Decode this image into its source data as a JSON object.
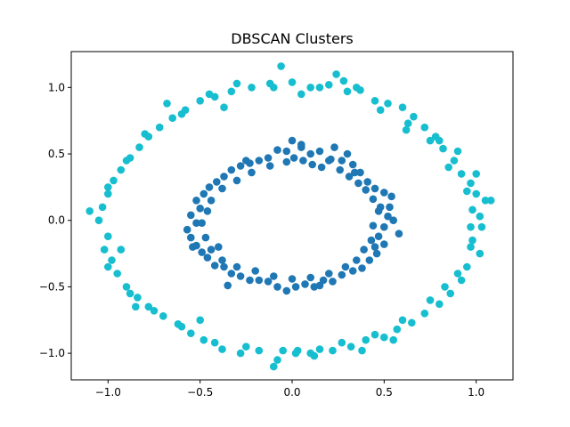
{
  "chart_data": {
    "type": "scatter",
    "title": "DBSCAN Clusters",
    "xlabel": "",
    "ylabel": "",
    "xlim": [
      -1.2,
      1.2
    ],
    "ylim": [
      -1.2,
      1.27
    ],
    "xticks": [
      -1.0,
      -0.5,
      0.0,
      0.5,
      1.0
    ],
    "xtick_labels": [
      "−1.0",
      "−0.5",
      "0.0",
      "0.5",
      "1.0"
    ],
    "yticks": [
      -1.0,
      -0.5,
      0.0,
      0.5,
      1.0
    ],
    "ytick_labels": [
      "−1.0",
      "−0.5",
      "0.0",
      "0.5",
      "1.0"
    ],
    "grid": false,
    "legend": "none",
    "series": [
      {
        "color": "#1f77b4",
        "points": [
          [
            0.0,
            0.6
          ],
          [
            0.05,
            0.57
          ],
          [
            0.1,
            0.5
          ],
          [
            0.15,
            0.52
          ],
          [
            0.2,
            0.45
          ],
          [
            0.23,
            0.55
          ],
          [
            0.27,
            0.45
          ],
          [
            0.3,
            0.5
          ],
          [
            0.33,
            0.42
          ],
          [
            0.37,
            0.36
          ],
          [
            0.41,
            0.29
          ],
          [
            0.45,
            0.24
          ],
          [
            0.5,
            0.21
          ],
          [
            0.54,
            0.18
          ],
          [
            0.48,
            0.1
          ],
          [
            0.52,
            0.03
          ],
          [
            0.55,
            0.0
          ],
          [
            0.5,
            -0.05
          ],
          [
            0.47,
            -0.12
          ],
          [
            0.5,
            -0.18
          ],
          [
            0.46,
            -0.25
          ],
          [
            0.42,
            -0.3
          ],
          [
            0.38,
            -0.36
          ],
          [
            0.33,
            -0.38
          ],
          [
            0.27,
            -0.41
          ],
          [
            0.22,
            -0.46
          ],
          [
            0.17,
            -0.45
          ],
          [
            0.12,
            -0.5
          ],
          [
            0.07,
            -0.48
          ],
          [
            0.02,
            -0.5
          ],
          [
            -0.03,
            -0.53
          ],
          [
            -0.08,
            -0.5
          ],
          [
            -0.13,
            -0.46
          ],
          [
            -0.18,
            -0.45
          ],
          [
            -0.23,
            -0.45
          ],
          [
            -0.28,
            -0.42
          ],
          [
            -0.33,
            -0.4
          ],
          [
            -0.37,
            -0.35
          ],
          [
            -0.42,
            -0.34
          ],
          [
            -0.46,
            -0.28
          ],
          [
            -0.49,
            -0.24
          ],
          [
            -0.52,
            -0.19
          ],
          [
            -0.55,
            -0.13
          ],
          [
            -0.57,
            -0.07
          ],
          [
            -0.52,
            -0.02
          ],
          [
            -0.55,
            0.04
          ],
          [
            -0.5,
            0.09
          ],
          [
            -0.52,
            0.15
          ],
          [
            -0.48,
            0.2
          ],
          [
            -0.45,
            0.25
          ],
          [
            -0.41,
            0.29
          ],
          [
            -0.37,
            0.33
          ],
          [
            -0.33,
            0.38
          ],
          [
            -0.28,
            0.41
          ],
          [
            -0.23,
            0.43
          ],
          [
            -0.18,
            0.45
          ],
          [
            -0.13,
            0.47
          ],
          [
            -0.08,
            0.53
          ],
          [
            -0.03,
            0.52
          ],
          [
            0.01,
            0.47
          ],
          [
            0.06,
            0.45
          ],
          [
            0.11,
            0.42
          ],
          [
            0.16,
            0.4
          ],
          [
            0.21,
            0.46
          ],
          [
            0.26,
            0.38
          ],
          [
            0.31,
            0.33
          ],
          [
            0.36,
            0.28
          ],
          [
            0.4,
            0.23
          ],
          [
            0.44,
            0.16
          ],
          [
            0.47,
            0.07
          ],
          [
            0.44,
            -0.04
          ],
          [
            0.43,
            -0.15
          ],
          [
            0.39,
            -0.22
          ],
          [
            0.35,
            -0.3
          ],
          [
            0.29,
            -0.35
          ],
          [
            0.2,
            -0.4
          ],
          [
            0.1,
            -0.43
          ],
          [
            0.0,
            -0.44
          ],
          [
            -0.1,
            -0.42
          ],
          [
            -0.2,
            -0.38
          ],
          [
            -0.3,
            -0.35
          ],
          [
            -0.38,
            -0.3
          ],
          [
            -0.44,
            -0.22
          ],
          [
            -0.47,
            -0.13
          ],
          [
            -0.49,
            -0.02
          ],
          [
            -0.46,
            0.07
          ],
          [
            -0.44,
            0.15
          ],
          [
            -0.38,
            0.24
          ],
          [
            -0.3,
            0.3
          ],
          [
            -0.22,
            0.36
          ],
          [
            -0.12,
            0.41
          ],
          [
            -0.03,
            0.44
          ],
          [
            0.34,
            0.36
          ],
          [
            -0.4,
            -0.2
          ],
          [
            0.45,
            -0.2
          ],
          [
            -0.25,
            0.45
          ],
          [
            0.15,
            -0.49
          ],
          [
            -0.54,
            -0.2
          ],
          [
            0.53,
            0.1
          ],
          [
            0.05,
            0.55
          ],
          [
            -0.35,
            -0.49
          ],
          [
            0.58,
            -0.1
          ]
        ]
      },
      {
        "color": "#17becf",
        "points": [
          [
            -0.06,
            1.16
          ],
          [
            0.24,
            1.1
          ],
          [
            -0.3,
            1.03
          ],
          [
            -0.1,
            1.0
          ],
          [
            0.0,
            1.04
          ],
          [
            0.1,
            1.0
          ],
          [
            0.2,
            1.02
          ],
          [
            0.3,
            0.97
          ],
          [
            0.37,
            0.98
          ],
          [
            0.45,
            0.9
          ],
          [
            0.52,
            0.88
          ],
          [
            0.6,
            0.85
          ],
          [
            0.66,
            0.78
          ],
          [
            0.72,
            0.7
          ],
          [
            0.78,
            0.63
          ],
          [
            0.82,
            0.54
          ],
          [
            0.88,
            0.45
          ],
          [
            0.92,
            0.35
          ],
          [
            0.97,
            0.28
          ],
          [
            1.0,
            0.2
          ],
          [
            1.05,
            0.15
          ],
          [
            1.02,
            0.03
          ],
          [
            1.03,
            -0.05
          ],
          [
            0.98,
            -0.15
          ],
          [
            1.02,
            -0.25
          ],
          [
            0.95,
            -0.35
          ],
          [
            0.92,
            -0.45
          ],
          [
            0.86,
            -0.55
          ],
          [
            0.8,
            -0.63
          ],
          [
            0.72,
            -0.7
          ],
          [
            0.65,
            -0.77
          ],
          [
            0.57,
            -0.82
          ],
          [
            0.5,
            -0.88
          ],
          [
            0.4,
            -0.9
          ],
          [
            0.32,
            -0.95
          ],
          [
            0.22,
            -0.98
          ],
          [
            0.12,
            -1.02
          ],
          [
            0.02,
            -1.0
          ],
          [
            -0.08,
            -1.05
          ],
          [
            -0.18,
            -0.98
          ],
          [
            -0.28,
            -1.0
          ],
          [
            -0.38,
            -0.97
          ],
          [
            -0.48,
            -0.9
          ],
          [
            -0.55,
            -0.85
          ],
          [
            -0.62,
            -0.78
          ],
          [
            -0.7,
            -0.72
          ],
          [
            -0.78,
            -0.65
          ],
          [
            -0.84,
            -0.58
          ],
          [
            -0.9,
            -0.5
          ],
          [
            -0.95,
            -0.4
          ],
          [
            -0.98,
            -0.3
          ],
          [
            -1.02,
            -0.22
          ],
          [
            -1.0,
            -0.12
          ],
          [
            -1.05,
            0.0
          ],
          [
            -1.03,
            0.1
          ],
          [
            -1.0,
            0.2
          ],
          [
            -0.97,
            0.3
          ],
          [
            -0.93,
            0.38
          ],
          [
            -0.88,
            0.47
          ],
          [
            -0.83,
            0.55
          ],
          [
            -0.78,
            0.63
          ],
          [
            -0.72,
            0.7
          ],
          [
            -0.65,
            0.77
          ],
          [
            -0.58,
            0.83
          ],
          [
            -0.5,
            0.9
          ],
          [
            -0.42,
            0.93
          ],
          [
            -0.33,
            0.97
          ],
          [
            -0.22,
            1.0
          ],
          [
            -0.12,
            1.03
          ],
          [
            0.05,
            0.95
          ],
          [
            0.15,
            1.0
          ],
          [
            0.35,
            1.0
          ],
          [
            0.48,
            0.83
          ],
          [
            0.63,
            0.73
          ],
          [
            0.75,
            0.6
          ],
          [
            0.85,
            0.4
          ],
          [
            0.95,
            0.22
          ],
          [
            0.98,
            0.08
          ],
          [
            1.08,
            0.15
          ],
          [
            0.97,
            -0.05
          ],
          [
            0.97,
            -0.2
          ],
          [
            0.9,
            -0.4
          ],
          [
            0.83,
            -0.5
          ],
          [
            0.75,
            -0.6
          ],
          [
            0.6,
            -0.75
          ],
          [
            0.45,
            -0.86
          ],
          [
            0.27,
            -0.92
          ],
          [
            0.15,
            -0.97
          ],
          [
            -0.05,
            -0.98
          ],
          [
            -0.25,
            -0.95
          ],
          [
            -0.42,
            -0.92
          ],
          [
            -0.6,
            -0.8
          ],
          [
            -0.75,
            -0.68
          ],
          [
            -0.88,
            -0.55
          ],
          [
            -1.0,
            -0.35
          ],
          [
            -1.1,
            0.07
          ],
          [
            -1.0,
            0.25
          ],
          [
            -0.9,
            0.45
          ],
          [
            -0.8,
            0.65
          ],
          [
            -0.6,
            0.8
          ],
          [
            -0.45,
            0.95
          ],
          [
            0.8,
            0.6
          ],
          [
            1.0,
            0.35
          ],
          [
            -0.85,
            -0.65
          ],
          [
            0.55,
            -0.9
          ],
          [
            -0.1,
            -1.1
          ],
          [
            0.1,
            -1.0
          ],
          [
            -0.68,
            0.88
          ],
          [
            0.28,
            1.05
          ],
          [
            -0.37,
            0.85
          ],
          [
            0.62,
            0.68
          ],
          [
            -0.93,
            -0.22
          ],
          [
            0.03,
            -0.98
          ],
          [
            0.9,
            0.52
          ],
          [
            -0.5,
            -0.75
          ],
          [
            0.38,
            -0.98
          ]
        ]
      }
    ]
  }
}
